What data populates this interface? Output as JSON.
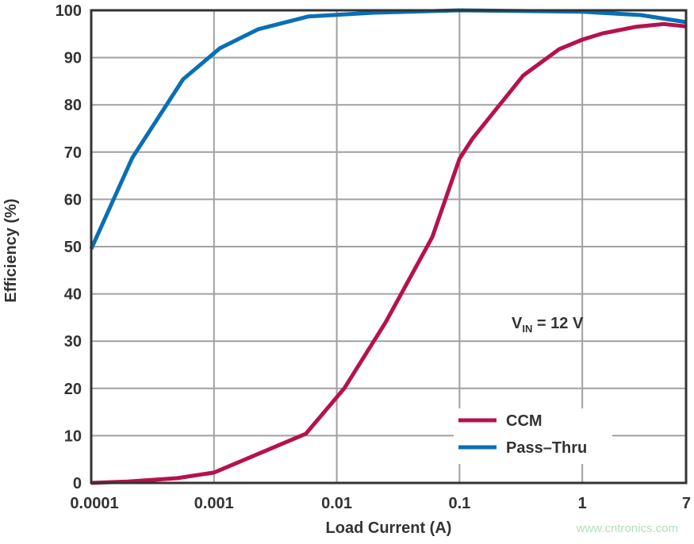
{
  "chart_data": {
    "type": "line",
    "title": "",
    "xlabel": "Load Current (A)",
    "ylabel": "Efficiency (%)",
    "x_scale": "log",
    "xlim": [
      0.0001,
      7
    ],
    "ylim": [
      0,
      100
    ],
    "x_ticks": [
      0.0001,
      0.001,
      0.01,
      0.1,
      1,
      7
    ],
    "x_tick_labels": [
      "0.0001",
      "0.001",
      "0.01",
      "0.1",
      "1",
      "7"
    ],
    "y_ticks": [
      0,
      10,
      20,
      30,
      40,
      50,
      60,
      70,
      80,
      90,
      100
    ],
    "y_tick_labels": [
      "0",
      "10",
      "20",
      "30",
      "40",
      "50",
      "60",
      "70",
      "80",
      "90",
      "100"
    ],
    "grid": true,
    "legend_position": "bottom-right",
    "annotation": {
      "main": "V",
      "sub": "IN",
      "rest": " = 12 V"
    },
    "series": [
      {
        "name": "CCM",
        "color": "#b5124f",
        "x": [
          0.0001,
          0.0002,
          0.0005,
          0.001,
          0.0056,
          0.0115,
          0.025,
          0.06,
          0.1,
          0.127,
          0.33,
          0.65,
          1.0,
          1.45,
          2.7,
          4.6,
          7
        ],
        "y": [
          0,
          0.3,
          1.0,
          2.2,
          10.4,
          20,
          34,
          52,
          68.6,
          72.8,
          86.2,
          91.8,
          93.8,
          95.1,
          96.5,
          97.1,
          96.6
        ]
      },
      {
        "name": "Pass–Thru",
        "color": "#0a6fb4",
        "x": [
          0.0001,
          0.000216,
          0.00056,
          0.00112,
          0.0023,
          0.0059,
          0.02,
          0.1,
          1,
          3,
          7
        ],
        "y": [
          49.5,
          68.8,
          85.4,
          92,
          96,
          98.7,
          99.5,
          100,
          99.7,
          99,
          97.5
        ]
      }
    ]
  },
  "watermark": "www.cntronics.com"
}
